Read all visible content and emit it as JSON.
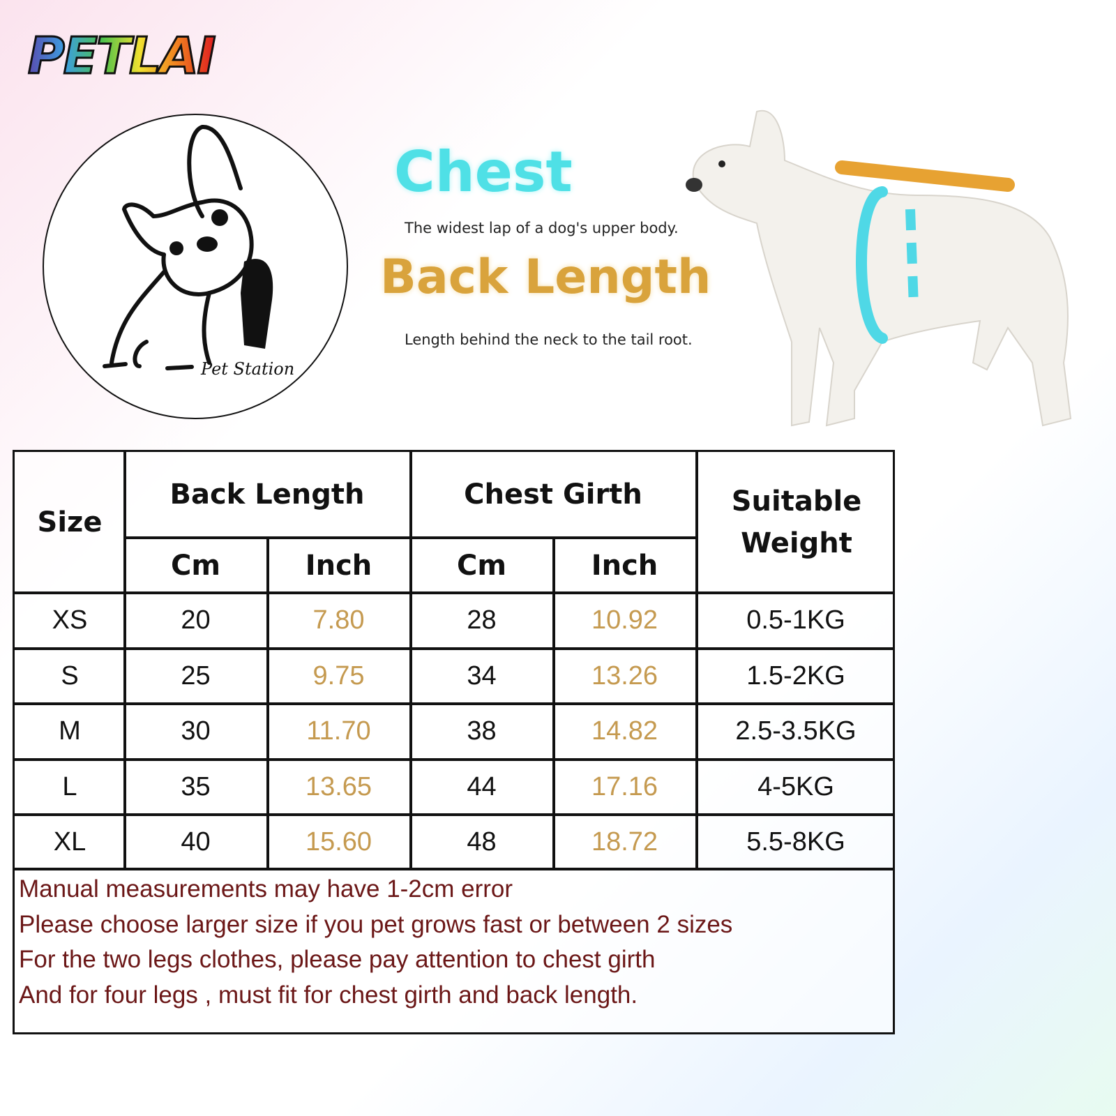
{
  "brand": {
    "logo_text": "PETLAI",
    "emblem_text": "Pet Station"
  },
  "guide": {
    "chest_title": "Chest",
    "chest_desc": "The widest lap of a dog's upper body.",
    "back_title": "Back Length",
    "back_desc": "Length behind the neck to the tail root."
  },
  "colors": {
    "chest": "#4fe0e6",
    "back": "#d9a33c",
    "inch_values": "#c59a50",
    "notes": "#6b1717"
  },
  "table": {
    "headers": {
      "size": "Size",
      "back_length": "Back Length",
      "chest_girth": "Chest Girth",
      "weight": "Suitable Weight",
      "cm": "Cm",
      "inch": "Inch"
    },
    "rows": [
      {
        "size": "XS",
        "back_cm": "20",
        "back_in": "7.80",
        "chest_cm": "28",
        "chest_in": "10.92",
        "weight": "0.5-1KG"
      },
      {
        "size": "S",
        "back_cm": "25",
        "back_in": "9.75",
        "chest_cm": "34",
        "chest_in": "13.26",
        "weight": "1.5-2KG"
      },
      {
        "size": "M",
        "back_cm": "30",
        "back_in": "11.70",
        "chest_cm": "38",
        "chest_in": "14.82",
        "weight": "2.5-3.5KG"
      },
      {
        "size": "L",
        "back_cm": "35",
        "back_in": "13.65",
        "chest_cm": "44",
        "chest_in": "17.16",
        "weight": "4-5KG"
      },
      {
        "size": "XL",
        "back_cm": "40",
        "back_in": "15.60",
        "chest_cm": "48",
        "chest_in": "18.72",
        "weight": "5.5-8KG"
      }
    ],
    "notes": [
      "Manual measurements may have 1-2cm error",
      "Please choose larger size if you pet grows fast or between 2 sizes",
      "For the two legs clothes,  please pay attention to chest girth",
      "And for four legs ,  must fit for chest girth and back length."
    ]
  }
}
